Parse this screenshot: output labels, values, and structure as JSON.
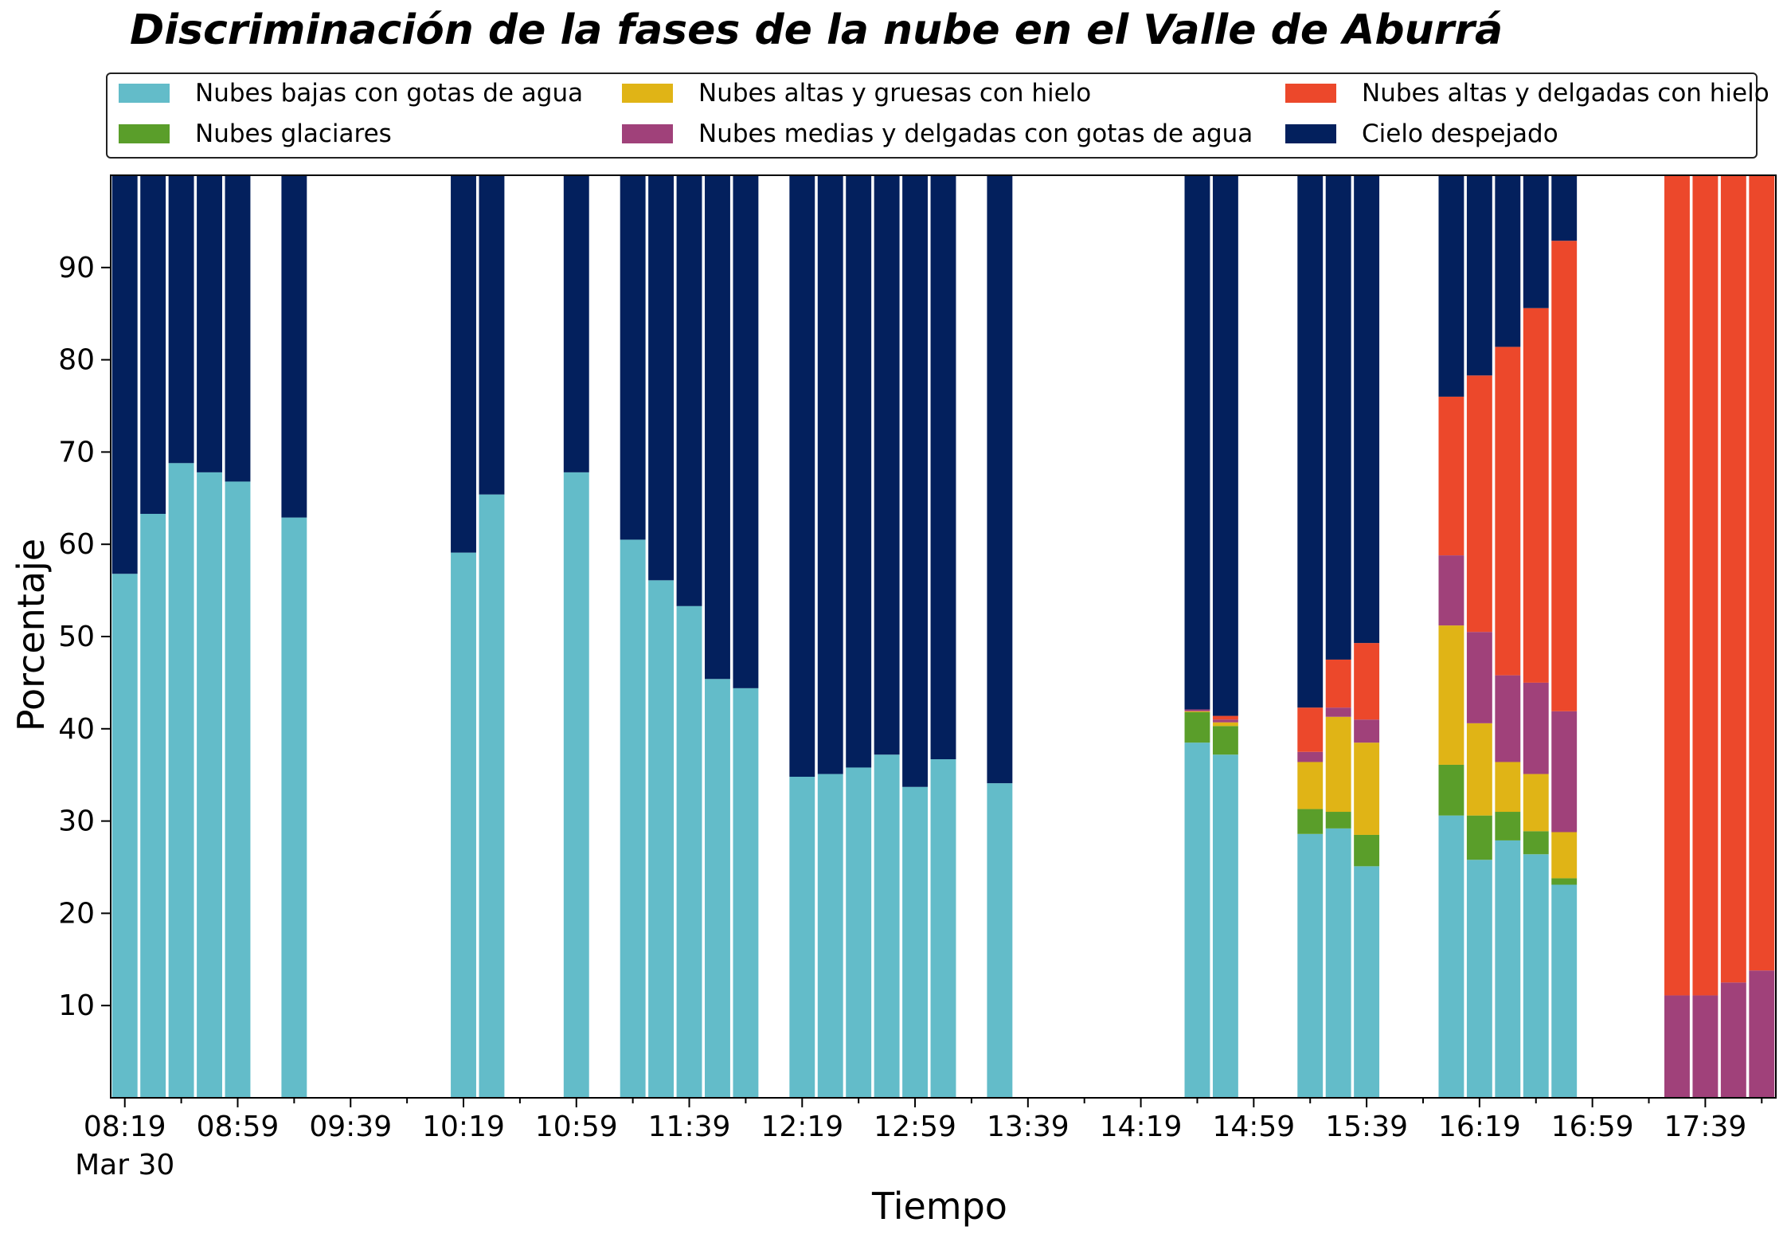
{
  "chart_data": {
    "type": "bar",
    "stacked": true,
    "title": "Discriminación de la fases de la nube en el Valle de Aburrá",
    "xlabel": "Tiempo",
    "ylabel": "Porcentaje",
    "ylim": [
      0,
      100
    ],
    "y_ticks": [
      "10",
      "20",
      "30",
      "40",
      "50",
      "60",
      "70",
      "80",
      "90"
    ],
    "x_tick_labels": [
      "08:19",
      "08:59",
      "09:39",
      "10:19",
      "10:59",
      "11:39",
      "12:19",
      "12:59",
      "13:39",
      "14:19",
      "14:59",
      "15:39",
      "16:19",
      "16:59",
      "17:39"
    ],
    "x_date_label": "Mar 30",
    "x_start": "08:19",
    "x_interval_minutes": 10,
    "grid": false,
    "legend_position": "top",
    "x": [
      "08:19",
      "08:29",
      "08:39",
      "08:49",
      "08:59",
      "09:09",
      "09:19",
      "09:29",
      "09:39",
      "09:49",
      "09:59",
      "10:09",
      "10:19",
      "10:29",
      "10:39",
      "10:49",
      "10:59",
      "11:09",
      "11:19",
      "11:29",
      "11:39",
      "11:49",
      "11:59",
      "12:09",
      "12:19",
      "12:29",
      "12:39",
      "12:49",
      "12:59",
      "13:09",
      "13:19",
      "13:29",
      "13:39",
      "13:49",
      "13:59",
      "14:09",
      "14:19",
      "14:29",
      "14:39",
      "14:49",
      "14:59",
      "15:09",
      "15:19",
      "15:29",
      "15:39",
      "15:49",
      "15:59",
      "16:09",
      "16:19",
      "16:29",
      "16:39",
      "16:49",
      "16:59",
      "17:09",
      "17:19",
      "17:29",
      "17:39",
      "17:49",
      "17:59"
    ],
    "series": [
      {
        "name": "Nubes bajas con gotas de agua",
        "color": "#63BCC9",
        "values": [
          56.8,
          63.3,
          68.8,
          67.8,
          66.8,
          null,
          62.9,
          null,
          null,
          null,
          null,
          null,
          59.1,
          65.4,
          null,
          null,
          67.8,
          null,
          60.5,
          56.1,
          53.3,
          45.4,
          44.4,
          null,
          34.8,
          35.1,
          35.8,
          37.2,
          33.7,
          36.7,
          null,
          34.1,
          null,
          null,
          null,
          null,
          null,
          null,
          38.5,
          37.2,
          null,
          null,
          28.6,
          29.2,
          25.1,
          null,
          null,
          30.6,
          25.8,
          27.9,
          26.4,
          23.1,
          null,
          null,
          null,
          0,
          0,
          0,
          0
        ]
      },
      {
        "name": "Nubes glaciares",
        "color": "#5A9E2A",
        "values": [
          0,
          0,
          0,
          0,
          0,
          null,
          0,
          null,
          null,
          null,
          null,
          null,
          0,
          0,
          null,
          null,
          0,
          null,
          0,
          0,
          0,
          0,
          0,
          null,
          0,
          0,
          0,
          0,
          0,
          0,
          null,
          0,
          null,
          null,
          null,
          null,
          null,
          null,
          3.3,
          3.1,
          null,
          null,
          2.7,
          1.8,
          3.4,
          null,
          null,
          5.5,
          4.8,
          3.1,
          2.5,
          0.7,
          null,
          null,
          null,
          0,
          0,
          0,
          0
        ]
      },
      {
        "name": "Nubes altas y gruesas con hielo",
        "color": "#E0B416",
        "values": [
          0,
          0,
          0,
          0,
          0,
          null,
          0,
          null,
          null,
          null,
          null,
          null,
          0,
          0,
          null,
          null,
          0,
          null,
          0,
          0,
          0,
          0,
          0,
          null,
          0,
          0,
          0,
          0,
          0,
          0,
          null,
          0,
          null,
          null,
          null,
          null,
          null,
          null,
          0.1,
          0.4,
          null,
          null,
          5.1,
          10.3,
          10.0,
          null,
          null,
          15.1,
          10.0,
          5.4,
          6.2,
          5.0,
          null,
          null,
          null,
          0,
          0,
          0,
          0
        ]
      },
      {
        "name": "Nubes medias y delgadas con gotas de agua",
        "color": "#A0417A",
        "values": [
          0,
          0,
          0,
          0,
          0,
          null,
          0,
          null,
          null,
          null,
          null,
          null,
          0,
          0,
          null,
          null,
          0,
          null,
          0,
          0,
          0,
          0,
          0,
          null,
          0,
          0,
          0,
          0,
          0,
          0,
          null,
          0,
          null,
          null,
          null,
          null,
          null,
          null,
          0.2,
          0.3,
          null,
          null,
          1.1,
          1.0,
          2.5,
          null,
          null,
          7.6,
          9.9,
          9.4,
          9.9,
          13.1,
          null,
          null,
          null,
          11.1,
          11.1,
          12.5,
          13.8
        ]
      },
      {
        "name": "Nubes altas y delgadas con hielo",
        "color": "#EC482B",
        "values": [
          0,
          0,
          0,
          0,
          0,
          null,
          0,
          null,
          null,
          null,
          null,
          null,
          0,
          0,
          null,
          null,
          0,
          null,
          0,
          0,
          0,
          0,
          0,
          null,
          0,
          0,
          0,
          0,
          0,
          0,
          null,
          0,
          null,
          null,
          null,
          null,
          null,
          null,
          0,
          0.4,
          null,
          null,
          4.8,
          5.2,
          8.3,
          null,
          null,
          17.2,
          27.8,
          35.6,
          40.6,
          51.0,
          null,
          null,
          null,
          88.9,
          88.9,
          87.5,
          86.2
        ]
      },
      {
        "name": "Cielo despejado",
        "color": "#03205D",
        "values": [
          43.2,
          36.7,
          31.2,
          32.2,
          33.2,
          null,
          37.1,
          null,
          null,
          null,
          null,
          null,
          40.9,
          34.6,
          null,
          null,
          32.2,
          null,
          39.5,
          43.9,
          46.7,
          54.6,
          55.6,
          null,
          65.2,
          64.9,
          64.2,
          62.8,
          66.3,
          63.3,
          null,
          65.9,
          null,
          null,
          null,
          null,
          null,
          null,
          57.9,
          58.6,
          null,
          null,
          57.7,
          52.5,
          50.7,
          null,
          null,
          24.0,
          21.7,
          18.6,
          14.4,
          7.1,
          null,
          null,
          null,
          0,
          0,
          0,
          0
        ]
      }
    ]
  }
}
